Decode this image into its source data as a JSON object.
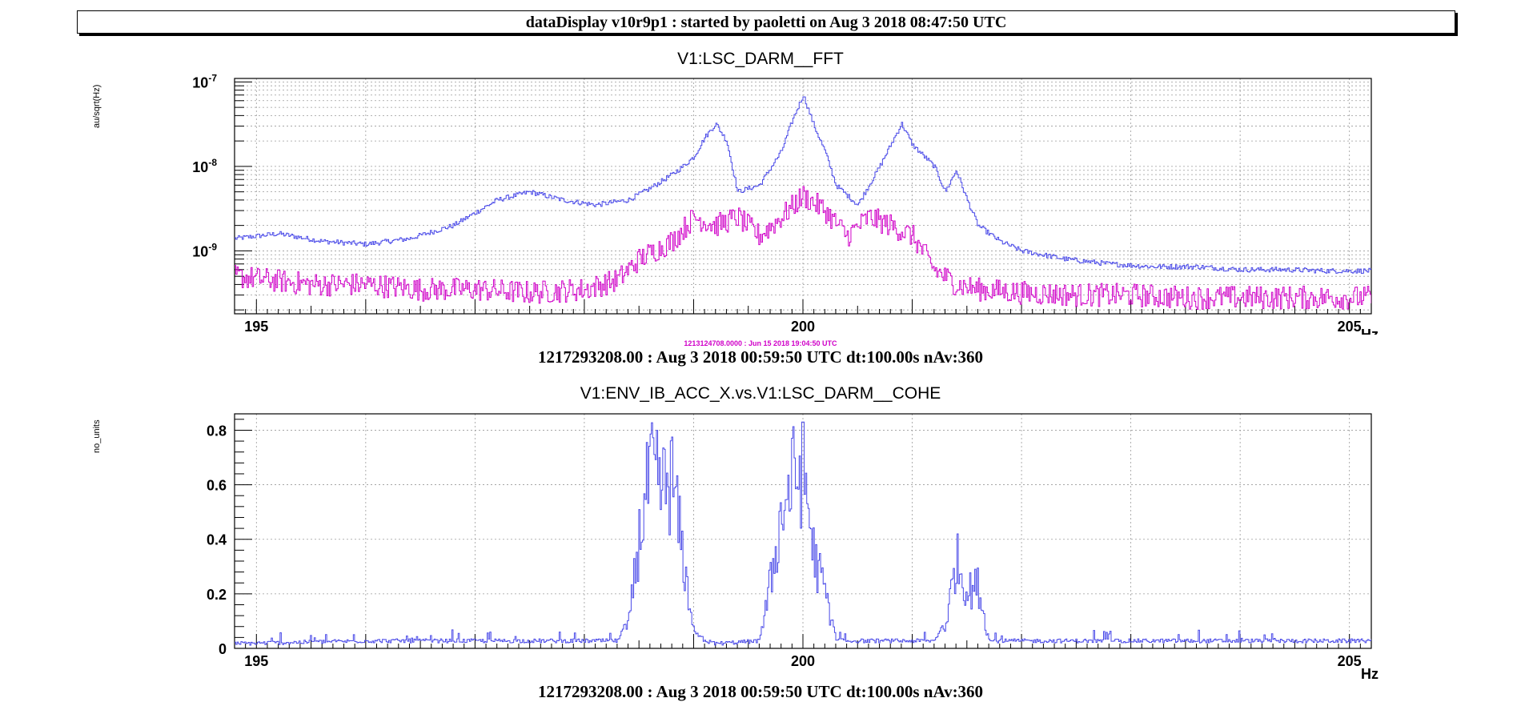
{
  "header": {
    "title": "dataDisplay v10r9p1 : started by paoletti on Aug  3 2018 08:47:50 UTC"
  },
  "colors": {
    "blue_trace": "#4a4ae8",
    "magenta_trace": "#d000c8",
    "grid": "#9a9a9a",
    "axis": "#000000"
  },
  "plots": [
    {
      "title": "V1:LSC_DARM__FFT",
      "ylabel": "au/sqrt(Hz)",
      "ref_label": "1213124708.0000 : Jun 15 2018 19:04:50 UTC",
      "footer": "1217293208.00 : Aug  3 2018 00:59:50 UTC dt:100.00s nAv:360",
      "xlabel": "Hz"
    },
    {
      "title": "V1:ENV_IB_ACC_X.vs.V1:LSC_DARM__COHE",
      "ylabel": "no_units",
      "footer": "1217293208.00 : Aug  3 2018 00:59:50 UTC dt:100.00s nAv:360",
      "xlabel": "Hz"
    }
  ],
  "chart_data": [
    {
      "type": "line",
      "title": "V1:LSC_DARM__FFT",
      "xlabel": "Hz",
      "ylabel": "au/sqrt(Hz)",
      "yscale": "log",
      "xlim": [
        194.8,
        205.2
      ],
      "ylim": [
        1.8e-10,
        1.1e-07
      ],
      "x_ticks": [
        195,
        200,
        205
      ],
      "y_ticks": [
        "10^-7",
        "10^-8",
        "10^-9"
      ],
      "grid": true,
      "series": [
        {
          "color": "blue",
          "x": [
            194.8,
            195.2,
            195.6,
            196.0,
            196.4,
            196.8,
            197.2,
            197.5,
            197.8,
            198.1,
            198.4,
            198.6,
            198.8,
            198.9,
            199.0,
            199.1,
            199.2,
            199.3,
            199.4,
            199.6,
            199.8,
            199.9,
            200.0,
            200.1,
            200.2,
            200.3,
            200.5,
            200.7,
            200.9,
            201.0,
            201.2,
            201.3,
            201.4,
            201.5,
            201.6,
            201.8,
            202.0,
            202.4,
            202.8,
            203.2,
            203.6,
            204.0,
            204.4,
            204.8,
            205.2
          ],
          "y": [
            1.4e-09,
            1.6e-09,
            1.3e-09,
            1.2e-09,
            1.4e-09,
            2e-09,
            4e-09,
            5e-09,
            4e-09,
            3.5e-09,
            4e-09,
            5.5e-09,
            8e-09,
            1e-08,
            1.3e-08,
            2.2e-08,
            3.2e-08,
            2e-08,
            5e-09,
            6e-09,
            1.5e-08,
            3.5e-08,
            7e-08,
            3e-08,
            1.5e-08,
            6e-09,
            3.5e-09,
            1e-08,
            3.2e-08,
            1.8e-08,
            1e-08,
            5e-09,
            9e-09,
            4e-09,
            2e-09,
            1.3e-09,
            1e-09,
            8e-10,
            7e-10,
            6.5e-10,
            6.5e-10,
            6e-10,
            6e-10,
            5.8e-10,
            5.8e-10
          ]
        },
        {
          "color": "magenta",
          "x": [
            194.8,
            195.5,
            196.0,
            196.5,
            197.0,
            197.5,
            198.0,
            198.3,
            198.5,
            198.8,
            199.0,
            199.2,
            199.4,
            199.6,
            199.8,
            200.0,
            200.2,
            200.4,
            200.6,
            200.8,
            201.0,
            201.2,
            201.4,
            201.6,
            202.0,
            202.5,
            203.0,
            203.5,
            204.0,
            204.5,
            205.2
          ],
          "y": [
            5e-10,
            4e-10,
            4e-10,
            3.5e-10,
            3.5e-10,
            3.2e-10,
            3.5e-10,
            4.5e-10,
            8e-10,
            1.3e-09,
            2.5e-09,
            2e-09,
            2.5e-09,
            1.5e-09,
            2.5e-09,
            4.5e-09,
            3e-09,
            1.5e-09,
            2.5e-09,
            2e-09,
            1.5e-09,
            6e-10,
            4e-10,
            3.5e-10,
            3.2e-10,
            3e-10,
            3e-10,
            2.8e-10,
            2.8e-10,
            2.8e-10,
            2.8e-10
          ]
        }
      ]
    },
    {
      "type": "line",
      "title": "V1:ENV_IB_ACC_X.vs.V1:LSC_DARM__COHE",
      "xlabel": "Hz",
      "ylabel": "no_units",
      "xlim": [
        194.8,
        205.2
      ],
      "ylim": [
        0,
        0.86
      ],
      "x_ticks": [
        195,
        200,
        205
      ],
      "y_ticks": [
        0,
        0.2,
        0.4,
        0.6,
        0.8
      ],
      "grid": true,
      "series": [
        {
          "color": "blue",
          "x": [
            194.8,
            196.0,
            197.0,
            198.3,
            198.4,
            198.5,
            198.6,
            198.7,
            198.8,
            198.9,
            199.0,
            199.1,
            199.2,
            199.6,
            199.7,
            199.8,
            199.9,
            200.0,
            200.1,
            200.2,
            200.3,
            201.2,
            201.3,
            201.4,
            201.5,
            201.6,
            201.7,
            202.0,
            203.0,
            204.0,
            205.2
          ],
          "y": [
            0.01,
            0.02,
            0.02,
            0.02,
            0.1,
            0.5,
            0.78,
            0.7,
            0.75,
            0.4,
            0.05,
            0.02,
            0.01,
            0.02,
            0.3,
            0.6,
            0.75,
            0.8,
            0.4,
            0.25,
            0.02,
            0.02,
            0.1,
            0.4,
            0.25,
            0.28,
            0.02,
            0.02,
            0.02,
            0.02,
            0.02
          ]
        }
      ]
    }
  ]
}
